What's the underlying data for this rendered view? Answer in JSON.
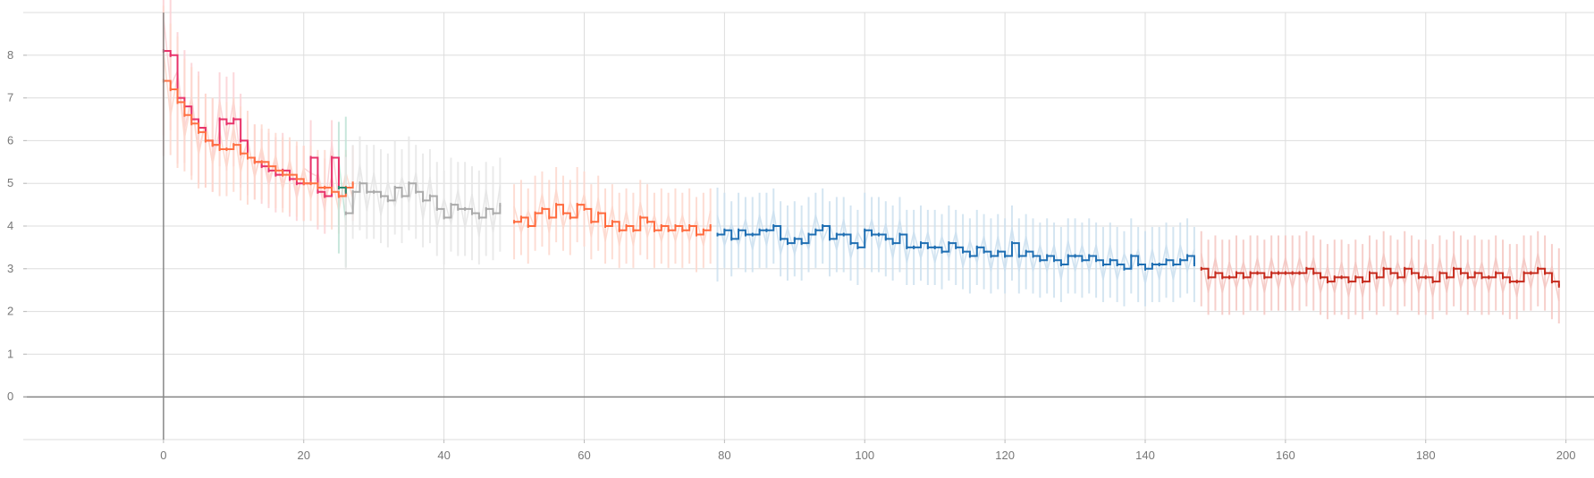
{
  "chart_data": {
    "type": "line",
    "title": "",
    "xlabel": "",
    "ylabel": "",
    "xlim": [
      -20,
      204
    ],
    "ylim": [
      -1,
      9
    ],
    "x_ticks": [
      0,
      20,
      40,
      60,
      80,
      100,
      120,
      140,
      160,
      180,
      200
    ],
    "y_ticks": [
      0,
      1,
      2,
      3,
      4,
      5,
      6,
      7,
      8
    ],
    "grid": true,
    "legend": "none",
    "series": [
      {
        "color": "#e8336b",
        "x": [
          0,
          1,
          2,
          3,
          4,
          5,
          6,
          7,
          8,
          9,
          10,
          11,
          12,
          13,
          14,
          15,
          16,
          17,
          18,
          19,
          20,
          21,
          22,
          23,
          24,
          25,
          26
        ],
        "y": [
          8.1,
          8.0,
          7.0,
          6.8,
          6.5,
          6.3,
          6.0,
          5.9,
          6.5,
          6.4,
          6.5,
          6.0,
          5.6,
          5.5,
          5.4,
          5.3,
          5.2,
          5.3,
          5.1,
          5.0,
          5.0,
          5.6,
          4.8,
          4.7,
          5.6,
          4.9,
          4.8
        ],
        "err": [
          0.9,
          0.8,
          0.7,
          0.6,
          0.6,
          0.6,
          0.5,
          0.5,
          0.5,
          0.5,
          0.5,
          0.5,
          0.4,
          0.4,
          0.4,
          0.4,
          0.4,
          0.4,
          0.4,
          0.4,
          0.4,
          0.4,
          0.4,
          0.4,
          0.4,
          0.4,
          0.4
        ],
        "band_color": "#fbd0d4"
      },
      {
        "color": "#ff7043",
        "x": [
          0,
          1,
          2,
          3,
          4,
          5,
          6,
          7,
          8,
          9,
          10,
          11,
          12,
          13,
          14,
          15,
          16,
          17,
          18,
          19,
          20,
          21,
          22,
          23,
          24,
          25,
          26,
          27
        ],
        "y": [
          7.4,
          7.2,
          6.9,
          6.6,
          6.4,
          6.2,
          6.0,
          5.9,
          5.8,
          5.8,
          5.9,
          5.7,
          5.6,
          5.5,
          5.5,
          5.4,
          5.3,
          5.2,
          5.2,
          5.1,
          5.0,
          5.0,
          4.9,
          4.9,
          4.8,
          4.7,
          4.9,
          5.0
        ],
        "err": [
          0.8,
          0.7,
          0.7,
          0.6,
          0.6,
          0.6,
          0.5,
          0.5,
          0.5,
          0.5,
          0.5,
          0.5,
          0.5,
          0.4,
          0.4,
          0.4,
          0.4,
          0.4,
          0.4,
          0.4,
          0.4,
          0.4,
          0.4,
          0.4,
          0.4,
          0.4,
          0.4,
          0.4
        ],
        "band_color": "#fdd7cc"
      },
      {
        "color": "#2e8b6f",
        "x": [
          25,
          26
        ],
        "y": [
          4.9,
          4.8
        ],
        "err": [
          0.7,
          0.8
        ],
        "band_color": "#bfe3d6"
      },
      {
        "color": "#aaaaaa",
        "x": [
          26,
          27,
          28,
          29,
          30,
          31,
          32,
          33,
          34,
          35,
          36,
          37,
          38,
          39,
          40,
          41,
          42,
          43,
          44,
          45,
          46,
          47,
          48
        ],
        "y": [
          4.3,
          4.8,
          5.0,
          4.8,
          4.8,
          4.7,
          4.6,
          4.9,
          4.7,
          5.0,
          4.8,
          4.6,
          4.7,
          4.4,
          4.2,
          4.5,
          4.4,
          4.4,
          4.3,
          4.2,
          4.4,
          4.3,
          4.5
        ],
        "err": [
          0.6,
          0.5,
          0.5,
          0.5,
          0.5,
          0.5,
          0.5,
          0.5,
          0.5,
          0.5,
          0.5,
          0.5,
          0.5,
          0.5,
          0.5,
          0.5,
          0.5,
          0.5,
          0.5,
          0.5,
          0.5,
          0.5,
          0.5
        ],
        "band_color": "#e6e6e6"
      },
      {
        "color": "#ff6a3d",
        "x": [
          50,
          51,
          52,
          53,
          54,
          55,
          56,
          57,
          58,
          59,
          60,
          61,
          62,
          63,
          64,
          65,
          66,
          67,
          68,
          69,
          70,
          71,
          72,
          73,
          74,
          75,
          76,
          77,
          78
        ],
        "y": [
          4.1,
          4.2,
          4.0,
          4.3,
          4.4,
          4.2,
          4.5,
          4.3,
          4.2,
          4.5,
          4.4,
          4.1,
          4.3,
          4.0,
          4.1,
          3.9,
          4.0,
          3.9,
          4.2,
          4.1,
          3.9,
          4.0,
          3.9,
          4.0,
          3.9,
          4.0,
          3.8,
          3.9,
          4.0
        ],
        "err": [
          0.4,
          0.4,
          0.4,
          0.4,
          0.4,
          0.4,
          0.4,
          0.4,
          0.4,
          0.4,
          0.4,
          0.4,
          0.4,
          0.4,
          0.4,
          0.4,
          0.4,
          0.4,
          0.4,
          0.4,
          0.4,
          0.4,
          0.4,
          0.4,
          0.4,
          0.4,
          0.4,
          0.4,
          0.4
        ],
        "band_color": "#fdd7cc"
      },
      {
        "color": "#1f6fb3",
        "x": [
          79,
          80,
          81,
          82,
          83,
          84,
          85,
          86,
          87,
          88,
          89,
          90,
          91,
          92,
          93,
          94,
          95,
          96,
          97,
          98,
          99,
          100,
          101,
          102,
          103,
          104,
          105,
          106,
          107,
          108,
          109,
          110,
          111,
          112,
          113,
          114,
          115,
          116,
          117,
          118,
          119,
          120,
          121,
          122,
          123,
          124,
          125,
          126,
          127,
          128,
          129,
          130,
          131,
          132,
          133,
          134,
          135,
          136,
          137,
          138,
          139,
          140,
          141,
          142,
          143,
          144,
          145,
          146,
          147
        ],
        "y": [
          3.8,
          3.9,
          3.7,
          3.9,
          3.8,
          3.8,
          3.9,
          3.9,
          4.0,
          3.7,
          3.6,
          3.7,
          3.6,
          3.8,
          3.9,
          4.0,
          3.7,
          3.8,
          3.8,
          3.6,
          3.5,
          3.9,
          3.8,
          3.8,
          3.7,
          3.6,
          3.8,
          3.5,
          3.5,
          3.6,
          3.5,
          3.5,
          3.4,
          3.6,
          3.5,
          3.4,
          3.3,
          3.5,
          3.4,
          3.3,
          3.4,
          3.3,
          3.6,
          3.3,
          3.4,
          3.3,
          3.2,
          3.3,
          3.2,
          3.1,
          3.3,
          3.3,
          3.2,
          3.3,
          3.2,
          3.1,
          3.2,
          3.1,
          3.0,
          3.3,
          3.1,
          3.0,
          3.1,
          3.1,
          3.2,
          3.1,
          3.2,
          3.3,
          3.1
        ],
        "err": [
          0.5,
          0.4,
          0.4,
          0.4,
          0.4,
          0.4,
          0.4,
          0.4,
          0.4,
          0.4,
          0.4,
          0.4,
          0.4,
          0.4,
          0.4,
          0.4,
          0.4,
          0.4,
          0.4,
          0.4,
          0.4,
          0.4,
          0.4,
          0.4,
          0.4,
          0.4,
          0.4,
          0.4,
          0.4,
          0.4,
          0.4,
          0.4,
          0.4,
          0.4,
          0.4,
          0.4,
          0.4,
          0.4,
          0.4,
          0.4,
          0.4,
          0.4,
          0.4,
          0.4,
          0.4,
          0.4,
          0.4,
          0.4,
          0.4,
          0.4,
          0.4,
          0.4,
          0.4,
          0.4,
          0.4,
          0.4,
          0.4,
          0.4,
          0.4,
          0.4,
          0.4,
          0.4,
          0.4,
          0.4,
          0.4,
          0.4,
          0.4,
          0.4,
          0.4
        ],
        "band_color": "#cce0ef"
      },
      {
        "color": "#c62a1c",
        "x": [
          148,
          149,
          150,
          151,
          152,
          153,
          154,
          155,
          156,
          157,
          158,
          159,
          160,
          161,
          162,
          163,
          164,
          165,
          166,
          167,
          168,
          169,
          170,
          171,
          172,
          173,
          174,
          175,
          176,
          177,
          178,
          179,
          180,
          181,
          182,
          183,
          184,
          185,
          186,
          187,
          188,
          189,
          190,
          191,
          192,
          193,
          194,
          195,
          196,
          197,
          198,
          199
        ],
        "y": [
          3.0,
          2.8,
          2.9,
          2.8,
          2.8,
          2.9,
          2.8,
          2.9,
          2.9,
          2.8,
          2.9,
          2.9,
          2.9,
          2.9,
          2.9,
          3.0,
          2.9,
          2.8,
          2.7,
          2.8,
          2.8,
          2.7,
          2.8,
          2.7,
          2.9,
          2.8,
          3.0,
          2.9,
          2.8,
          3.0,
          2.9,
          2.8,
          2.8,
          2.7,
          2.9,
          2.8,
          3.0,
          2.9,
          2.8,
          2.9,
          2.8,
          2.8,
          2.9,
          2.8,
          2.7,
          2.7,
          2.9,
          2.9,
          3.0,
          2.9,
          2.7,
          2.6
        ],
        "err": [
          0.4,
          0.4,
          0.4,
          0.4,
          0.4,
          0.4,
          0.4,
          0.4,
          0.4,
          0.4,
          0.4,
          0.4,
          0.4,
          0.4,
          0.4,
          0.4,
          0.4,
          0.4,
          0.4,
          0.4,
          0.4,
          0.4,
          0.4,
          0.4,
          0.4,
          0.4,
          0.4,
          0.4,
          0.4,
          0.4,
          0.4,
          0.4,
          0.4,
          0.4,
          0.4,
          0.4,
          0.4,
          0.4,
          0.4,
          0.4,
          0.4,
          0.4,
          0.4,
          0.4,
          0.4,
          0.4,
          0.4,
          0.4,
          0.4,
          0.4,
          0.4,
          0.4
        ],
        "band_color": "#f4c7c2"
      }
    ]
  }
}
